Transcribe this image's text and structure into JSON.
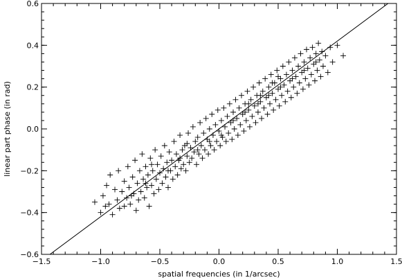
{
  "chart_data": {
    "type": "scatter",
    "title": "",
    "xlabel": "spatial frequencies (in 1/arcsec)",
    "ylabel": "linear part phase (in rad)",
    "xlim": [
      -1.5,
      1.5
    ],
    "ylim": [
      -0.6,
      0.6
    ],
    "x_ticks": [
      -1.5,
      -1.0,
      -0.5,
      0.0,
      0.5,
      1.0,
      1.5
    ],
    "x_tick_labels": [
      "−1.5",
      "−1.0",
      "−0.5",
      "0.0",
      "0.5",
      "1.0",
      "1.5"
    ],
    "y_ticks": [
      -0.6,
      -0.4,
      -0.2,
      0.0,
      0.2,
      0.4,
      0.6
    ],
    "y_tick_labels": [
      "−0.6",
      "−0.4",
      "−0.2",
      "0.0",
      "0.2",
      "0.4",
      "0.6"
    ],
    "grid": false,
    "marker": "plus",
    "marker_color": "#000000",
    "line_color": "#000000",
    "fit_line": {
      "x": [
        -1.5,
        1.5
      ],
      "y": [
        -0.63,
        0.63
      ]
    },
    "series": [
      {
        "values": [
          [
            -1.05,
            -0.35
          ],
          [
            -1.0,
            -0.4
          ],
          [
            -0.98,
            -0.32
          ],
          [
            -0.96,
            -0.37
          ],
          [
            -0.95,
            -0.27
          ],
          [
            -0.93,
            -0.36
          ],
          [
            -0.92,
            -0.22
          ],
          [
            -0.9,
            -0.41
          ],
          [
            -0.88,
            -0.29
          ],
          [
            -0.86,
            -0.34
          ],
          [
            -0.85,
            -0.2
          ],
          [
            -0.84,
            -0.38
          ],
          [
            -0.82,
            -0.3
          ],
          [
            -0.8,
            -0.25
          ],
          [
            -0.8,
            -0.37
          ],
          [
            -0.78,
            -0.33
          ],
          [
            -0.77,
            -0.18
          ],
          [
            -0.76,
            -0.28
          ],
          [
            -0.75,
            -0.36
          ],
          [
            -0.73,
            -0.23
          ],
          [
            -0.72,
            -0.31
          ],
          [
            -0.71,
            -0.15
          ],
          [
            -0.7,
            -0.39
          ],
          [
            -0.69,
            -0.26
          ],
          [
            -0.68,
            -0.34
          ],
          [
            -0.67,
            -0.2
          ],
          [
            -0.66,
            -0.3
          ],
          [
            -0.65,
            -0.12
          ],
          [
            -0.64,
            -0.24
          ],
          [
            -0.63,
            -0.33
          ],
          [
            -0.62,
            -0.18
          ],
          [
            -0.61,
            -0.28
          ],
          [
            -0.6,
            -0.22
          ],
          [
            -0.59,
            -0.37
          ],
          [
            -0.58,
            -0.14
          ],
          [
            -0.57,
            -0.27
          ],
          [
            -0.56,
            -0.2
          ],
          [
            -0.55,
            -0.31
          ],
          [
            -0.54,
            -0.1
          ],
          [
            -0.53,
            -0.24
          ],
          [
            -0.52,
            -0.17
          ],
          [
            -0.51,
            -0.29
          ],
          [
            -0.5,
            -0.21
          ],
          [
            -0.49,
            -0.13
          ],
          [
            -0.48,
            -0.26
          ],
          [
            -0.47,
            -0.19
          ],
          [
            -0.46,
            -0.08
          ],
          [
            -0.45,
            -0.23
          ],
          [
            -0.44,
            -0.16
          ],
          [
            -0.43,
            -0.28
          ],
          [
            -0.42,
            -0.11
          ],
          [
            -0.41,
            -0.2
          ],
          [
            -0.4,
            -0.15
          ],
          [
            -0.39,
            -0.24
          ],
          [
            -0.38,
            -0.06
          ],
          [
            -0.37,
            -0.18
          ],
          [
            -0.36,
            -0.12
          ],
          [
            -0.35,
            -0.22
          ],
          [
            -0.34,
            -0.15
          ],
          [
            -0.33,
            -0.03
          ],
          [
            -0.32,
            -0.19
          ],
          [
            -0.31,
            -0.1
          ],
          [
            -0.3,
            -0.17
          ],
          [
            -0.29,
            -0.08
          ],
          [
            -0.28,
            -0.2
          ],
          [
            -0.27,
            -0.13
          ],
          [
            -0.26,
            -0.02
          ],
          [
            -0.25,
            -0.16
          ],
          [
            -0.24,
            -0.09
          ],
          [
            -0.23,
            -0.14
          ],
          [
            -0.22,
            0.01
          ],
          [
            -0.21,
            -0.11
          ],
          [
            -0.2,
            -0.06
          ],
          [
            -0.19,
            -0.17
          ],
          [
            -0.18,
            -0.04
          ],
          [
            -0.17,
            -0.12
          ],
          [
            -0.16,
            0.03
          ],
          [
            -0.15,
            -0.08
          ],
          [
            -0.14,
            -0.14
          ],
          [
            -0.13,
            -0.02
          ],
          [
            -0.12,
            -0.1
          ],
          [
            -0.11,
            0.05
          ],
          [
            -0.1,
            -0.05
          ],
          [
            -0.09,
            -0.12
          ],
          [
            -0.08,
            0.0
          ],
          [
            -0.07,
            -0.08
          ],
          [
            -0.06,
            0.07
          ],
          [
            -0.05,
            -0.03
          ],
          [
            -0.04,
            -0.1
          ],
          [
            -0.03,
            0.02
          ],
          [
            -0.02,
            -0.06
          ],
          [
            -0.01,
            0.09
          ],
          [
            0.0,
            -0.01
          ],
          [
            0.01,
            -0.08
          ],
          [
            0.02,
            0.04
          ],
          [
            0.03,
            -0.04
          ],
          [
            0.04,
            0.1
          ],
          [
            0.05,
            0.01
          ],
          [
            0.06,
            -0.06
          ],
          [
            0.07,
            0.06
          ],
          [
            0.08,
            -0.02
          ],
          [
            0.09,
            0.12
          ],
          [
            0.1,
            0.03
          ],
          [
            0.11,
            -0.05
          ],
          [
            0.12,
            0.08
          ],
          [
            0.13,
            0.0
          ],
          [
            0.14,
            0.14
          ],
          [
            0.15,
            0.05
          ],
          [
            0.16,
            -0.03
          ],
          [
            0.17,
            0.1
          ],
          [
            0.18,
            0.02
          ],
          [
            0.19,
            0.16
          ],
          [
            0.2,
            0.07
          ],
          [
            0.21,
            -0.01
          ],
          [
            0.22,
            0.12
          ],
          [
            0.23,
            0.04
          ],
          [
            0.24,
            0.18
          ],
          [
            0.25,
            0.09
          ],
          [
            0.26,
            0.01
          ],
          [
            0.27,
            0.14
          ],
          [
            0.28,
            0.06
          ],
          [
            0.29,
            0.2
          ],
          [
            0.3,
            0.11
          ],
          [
            0.31,
            0.03
          ],
          [
            0.32,
            0.16
          ],
          [
            0.33,
            0.08
          ],
          [
            0.34,
            0.22
          ],
          [
            0.35,
            0.13
          ],
          [
            0.36,
            0.05
          ],
          [
            0.37,
            0.18
          ],
          [
            0.38,
            0.1
          ],
          [
            0.39,
            0.24
          ],
          [
            0.4,
            0.15
          ],
          [
            0.41,
            0.07
          ],
          [
            0.42,
            0.2
          ],
          [
            0.43,
            0.12
          ],
          [
            0.44,
            0.26
          ],
          [
            0.45,
            0.17
          ],
          [
            0.46,
            0.09
          ],
          [
            0.47,
            0.22
          ],
          [
            0.48,
            0.14
          ],
          [
            0.49,
            0.28
          ],
          [
            0.5,
            0.19
          ],
          [
            0.51,
            0.11
          ],
          [
            0.52,
            0.24
          ],
          [
            0.53,
            0.16
          ],
          [
            0.54,
            0.3
          ],
          [
            0.55,
            0.21
          ],
          [
            0.56,
            0.13
          ],
          [
            0.57,
            0.26
          ],
          [
            0.58,
            0.18
          ],
          [
            0.59,
            0.32
          ],
          [
            0.6,
            0.23
          ],
          [
            0.61,
            0.15
          ],
          [
            0.62,
            0.28
          ],
          [
            0.63,
            0.2
          ],
          [
            0.64,
            0.34
          ],
          [
            0.65,
            0.25
          ],
          [
            0.66,
            0.17
          ],
          [
            0.67,
            0.3
          ],
          [
            0.68,
            0.22
          ],
          [
            0.69,
            0.36
          ],
          [
            0.7,
            0.27
          ],
          [
            0.71,
            0.19
          ],
          [
            0.72,
            0.32
          ],
          [
            0.73,
            0.24
          ],
          [
            0.74,
            0.38
          ],
          [
            0.75,
            0.29
          ],
          [
            0.76,
            0.21
          ],
          [
            0.77,
            0.34
          ],
          [
            0.78,
            0.26
          ],
          [
            0.79,
            0.39
          ],
          [
            0.8,
            0.31
          ],
          [
            0.81,
            0.23
          ],
          [
            0.82,
            0.36
          ],
          [
            0.83,
            0.28
          ],
          [
            0.84,
            0.41
          ],
          [
            0.85,
            0.33
          ],
          [
            0.86,
            0.25
          ],
          [
            0.87,
            0.37
          ],
          [
            0.88,
            0.3
          ],
          [
            0.9,
            0.35
          ],
          [
            0.92,
            0.27
          ],
          [
            0.94,
            0.39
          ],
          [
            0.96,
            0.32
          ],
          [
            1.0,
            0.4
          ],
          [
            1.05,
            0.35
          ],
          [
            -0.74,
            -0.32
          ],
          [
            -0.62,
            -0.26
          ],
          [
            -0.57,
            -0.17
          ],
          [
            -0.43,
            -0.2
          ],
          [
            -0.33,
            -0.14
          ],
          [
            -0.27,
            -0.07
          ],
          [
            -0.18,
            -0.1
          ],
          [
            -0.08,
            -0.06
          ],
          [
            0.02,
            -0.03
          ],
          [
            0.12,
            0.04
          ],
          [
            0.22,
            0.08
          ],
          [
            0.33,
            0.12
          ],
          [
            0.42,
            0.16
          ],
          [
            0.52,
            0.2
          ],
          [
            0.62,
            0.24
          ],
          [
            0.72,
            0.28
          ],
          [
            0.82,
            0.32
          ],
          [
            0.5,
            0.25
          ],
          [
            0.45,
            0.22
          ],
          [
            0.35,
            0.16
          ],
          [
            0.25,
            0.12
          ]
        ]
      }
    ]
  }
}
